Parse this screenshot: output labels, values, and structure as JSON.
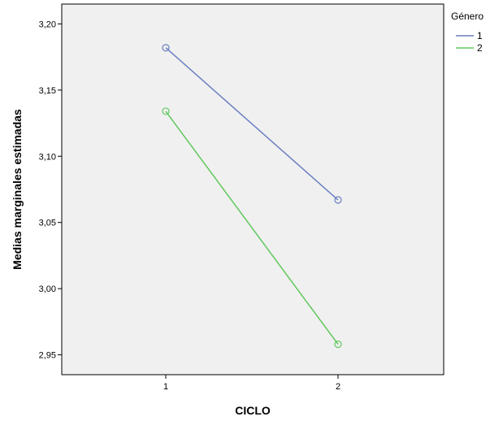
{
  "chart_data": {
    "type": "line",
    "xlabel": "CICLO",
    "ylabel": "Medias marginales estimadas",
    "categories": [
      "1",
      "2"
    ],
    "ylim": [
      2.935,
      3.215
    ],
    "yticks": [
      "3,20",
      "3,15",
      "3,10",
      "3,05",
      "3,00",
      "2,95"
    ],
    "ytick_values": [
      3.2,
      3.15,
      3.1,
      3.05,
      3.0,
      2.95
    ],
    "legend_title": "Género",
    "legend_position": "right",
    "plot_background": "#f0f0f0",
    "series": [
      {
        "name": "1",
        "color": "#6a7fc1",
        "values": [
          3.182,
          3.067
        ]
      },
      {
        "name": "2",
        "color": "#5fc85c",
        "values": [
          3.134,
          2.958
        ]
      }
    ]
  }
}
